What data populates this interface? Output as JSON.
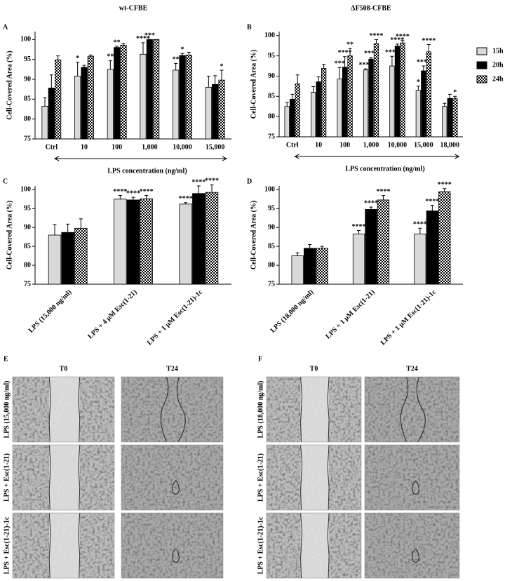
{
  "chart_data": [
    {
      "type": "bar",
      "panel": "A",
      "title": "wt-CFBE",
      "ylabel": "Cell-Covered Area (%)",
      "xlabel": "LPS concentration (ng/ml)",
      "categories": [
        "Ctrl",
        "10",
        "100",
        "1,000",
        "10,000",
        "15,000"
      ],
      "ylim": [
        75,
        102
      ],
      "yticks": [
        75,
        80,
        85,
        90,
        95,
        100
      ],
      "series": [
        {
          "color": "#d9d9d9",
          "values": [
            83.2,
            90.8,
            92.5,
            96.3,
            92.3,
            88
          ],
          "errors": [
            2.2,
            3.5,
            2.2,
            2.9,
            1.7,
            2.8
          ],
          "annotations": [
            null,
            "*",
            "**",
            "****",
            "**",
            null
          ]
        },
        {
          "color": "#000000",
          "values": [
            87.8,
            93,
            98,
            100,
            96,
            88.7
          ],
          "errors": [
            3.3,
            0.5,
            0.3,
            0,
            0.5,
            2.2
          ],
          "annotations": [
            null,
            null,
            "**",
            "***",
            "*",
            null
          ]
        },
        {
          "color": "#000000",
          "pattern": "checker",
          "values": [
            94.9,
            95.8,
            98.6,
            100,
            96.1,
            89.8
          ],
          "errors": [
            1,
            0.3,
            0.4,
            0,
            0.7,
            2.5
          ],
          "annotations": [
            null,
            null,
            null,
            null,
            null,
            "*"
          ]
        }
      ]
    },
    {
      "type": "bar",
      "panel": "B",
      "title": "ΔF508-CFBE",
      "ylabel": "Cell-Covered Area (%)",
      "xlabel": "LPS concentration (ng/ml)",
      "legend": "right",
      "categories": [
        "Ctrl",
        "10",
        "100",
        "1,000",
        "10,000",
        "15,000",
        "18,000"
      ],
      "ylim": [
        75,
        101
      ],
      "yticks": [
        75,
        80,
        85,
        90,
        95,
        100
      ],
      "series": [
        {
          "name": "15h",
          "color": "#d9d9d9",
          "values": [
            82.5,
            86,
            89.3,
            91.5,
            92.5,
            86.5,
            82.5
          ],
          "errors": [
            1,
            1.4,
            2.8,
            0.3,
            2.4,
            1,
            0.8
          ],
          "annotations": [
            null,
            null,
            "***",
            "****",
            "****",
            "*",
            null
          ]
        },
        {
          "name": "20h",
          "color": "#000000",
          "values": [
            84.3,
            88.6,
            92.2,
            94.2,
            97.4,
            91.3,
            84.5
          ],
          "errors": [
            1.2,
            1.2,
            2.6,
            0.4,
            0.5,
            1.2,
            1
          ],
          "annotations": [
            null,
            null,
            "****",
            "****",
            "****",
            "****",
            null
          ]
        },
        {
          "name": "24h",
          "color": "#000000",
          "pattern": "checker",
          "values": [
            88.1,
            91.9,
            95,
            98,
            98.2,
            96,
            84.5
          ],
          "errors": [
            2.2,
            1,
            1.8,
            1,
            0.6,
            1.8,
            0.5
          ],
          "annotations": [
            null,
            null,
            "**",
            "****",
            "****",
            "****",
            "*"
          ]
        }
      ]
    },
    {
      "type": "bar",
      "panel": "C",
      "ylabel": "Cell-Covered Area (%)",
      "xtick_rotation": -45,
      "categories": [
        "LPS (15,000 ng/ml)",
        "LPS + 4 μM Esc(1-21)",
        "LPS + 1 μM Esc(1-21)-1c"
      ],
      "ylim": [
        75,
        101
      ],
      "yticks": [
        75,
        80,
        85,
        90,
        95,
        100
      ],
      "series": [
        {
          "color": "#d9d9d9",
          "values": [
            88,
            97.5,
            96.2
          ],
          "errors": [
            2.8,
            1,
            0.4
          ],
          "annotations": [
            null,
            "****",
            "****"
          ]
        },
        {
          "color": "#000000",
          "values": [
            88.7,
            97.3,
            99
          ],
          "errors": [
            2.2,
            0.7,
            2
          ],
          "annotations": [
            null,
            "****",
            "****"
          ]
        },
        {
          "color": "#000000",
          "pattern": "checker",
          "values": [
            89.8,
            97.6,
            99.3
          ],
          "errors": [
            2.5,
            0.9,
            2
          ],
          "annotations": [
            null,
            "****",
            "****"
          ]
        }
      ]
    },
    {
      "type": "bar",
      "panel": "D",
      "ylabel": "Cell-Covered Area (%)",
      "xtick_rotation": -45,
      "categories": [
        "LPS (18,000 ng/ml)",
        "LPS + 1 μM Esc(1-21)",
        "LPS + 1 μM Esc(1-21)-1c"
      ],
      "ylim": [
        75,
        101
      ],
      "yticks": [
        75,
        80,
        85,
        90,
        95,
        100
      ],
      "series": [
        {
          "color": "#d9d9d9",
          "values": [
            82.5,
            88.3,
            88.3
          ],
          "errors": [
            0.8,
            0.9,
            1.5
          ],
          "annotations": [
            null,
            "****",
            "****"
          ]
        },
        {
          "color": "#000000",
          "values": [
            84.5,
            94.8,
            94.4
          ],
          "errors": [
            1,
            0.6,
            1.5
          ],
          "annotations": [
            null,
            "****",
            "****"
          ]
        },
        {
          "color": "#000000",
          "pattern": "checker",
          "values": [
            84.5,
            97.3,
            99.5
          ],
          "errors": [
            0.5,
            1.2,
            0.8
          ],
          "annotations": [
            null,
            "****",
            "****"
          ]
        }
      ]
    }
  ],
  "image_panels": [
    {
      "label": "E",
      "columns": [
        "T0",
        "T24"
      ],
      "rows": [
        "LPS (15,000 ng/ml)",
        "LPS + Esc(1-21)",
        "LPS + Esc(1-21)-1c"
      ]
    },
    {
      "label": "F",
      "columns": [
        "T0",
        "T24"
      ],
      "rows": [
        "LPS (18,000 ng/ml)",
        "LPS + Esc(1-21)",
        "LPS + Esc(1-21)-1c"
      ]
    }
  ]
}
